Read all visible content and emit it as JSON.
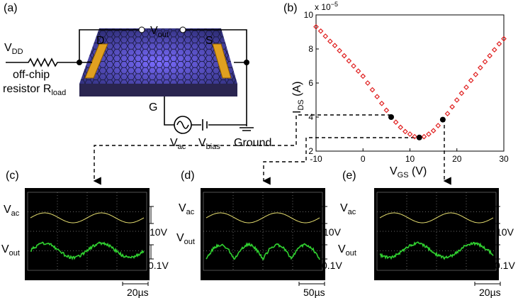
{
  "panel_a": {
    "label": "(a)",
    "drain": "D",
    "source": "S",
    "gate": "G",
    "vout": {
      "base": "V",
      "sub": "out"
    },
    "vdd": {
      "base": "V",
      "sub": "DD"
    },
    "resistor_line1": "off-chip",
    "resistor_line2": {
      "base": "resistor R",
      "sub": "load"
    },
    "vac": {
      "base": "V",
      "sub": "ac"
    },
    "vbias": {
      "base": "V",
      "sub": "bias"
    },
    "ground": "Ground"
  },
  "chart_data": {
    "type": "line",
    "panel_label": "(b)",
    "multiplier": {
      "base": "x 10",
      "sup": "−5"
    },
    "y_label": {
      "base": "I",
      "sub": "DS",
      "suffix": " (A)"
    },
    "x_label": {
      "base": "V",
      "sub": "GS",
      "suffix": " (V)"
    },
    "x": [
      -10,
      -9,
      -8,
      -7,
      -6,
      -5,
      -4,
      -3,
      -2,
      -1,
      0,
      1,
      2,
      3,
      4,
      5,
      6,
      7,
      8,
      9,
      10,
      11,
      12,
      13,
      14,
      15,
      16,
      17,
      18,
      19,
      20,
      21,
      22,
      23,
      24,
      25,
      26,
      27,
      28,
      29,
      30
    ],
    "series": [
      {
        "color": "#e02020",
        "values": [
          9.3,
          9.05,
          8.75,
          8.45,
          8.2,
          7.9,
          7.6,
          7.3,
          7.0,
          6.7,
          6.4,
          6.0,
          5.6,
          5.2,
          4.8,
          4.4,
          4.0,
          3.7,
          3.4,
          3.15,
          3.0,
          2.85,
          2.8,
          2.85,
          3.0,
          3.2,
          3.5,
          3.85,
          4.2,
          4.6,
          5.0,
          5.4,
          5.75,
          6.15,
          6.5,
          6.9,
          7.25,
          7.6,
          7.95,
          8.3,
          8.6
        ]
      }
    ],
    "highlight": {
      "color": "#000000",
      "x": [
        6,
        12,
        17
      ],
      "values": [
        4.0,
        2.8,
        3.85
      ]
    },
    "xlim": [
      -10,
      30
    ],
    "ylim": [
      2,
      10
    ],
    "xticks": [
      -10,
      0,
      10,
      20,
      30
    ],
    "yticks": [
      2,
      4,
      6,
      8,
      10
    ]
  },
  "scopes": [
    {
      "label": "(c)",
      "vac": {
        "base": "V",
        "sub": "ac"
      },
      "vout": {
        "base": "V",
        "sub": "out"
      },
      "vac_scale": "10V",
      "vout_scale": "0.1V",
      "time_scale": "20µs"
    },
    {
      "label": "(d)",
      "vac": {
        "base": "V",
        "sub": "ac"
      },
      "vout": {
        "base": "V",
        "sub": "out"
      },
      "vac_scale": "10V",
      "vout_scale": "0.1V",
      "time_scale": "50µs"
    },
    {
      "label": "(e)",
      "vac": {
        "base": "V",
        "sub": "ac"
      },
      "vout": {
        "base": "V",
        "sub": "out"
      },
      "vac_scale": "10V",
      "vout_scale": "0.1V",
      "time_scale": "20µs"
    }
  ]
}
